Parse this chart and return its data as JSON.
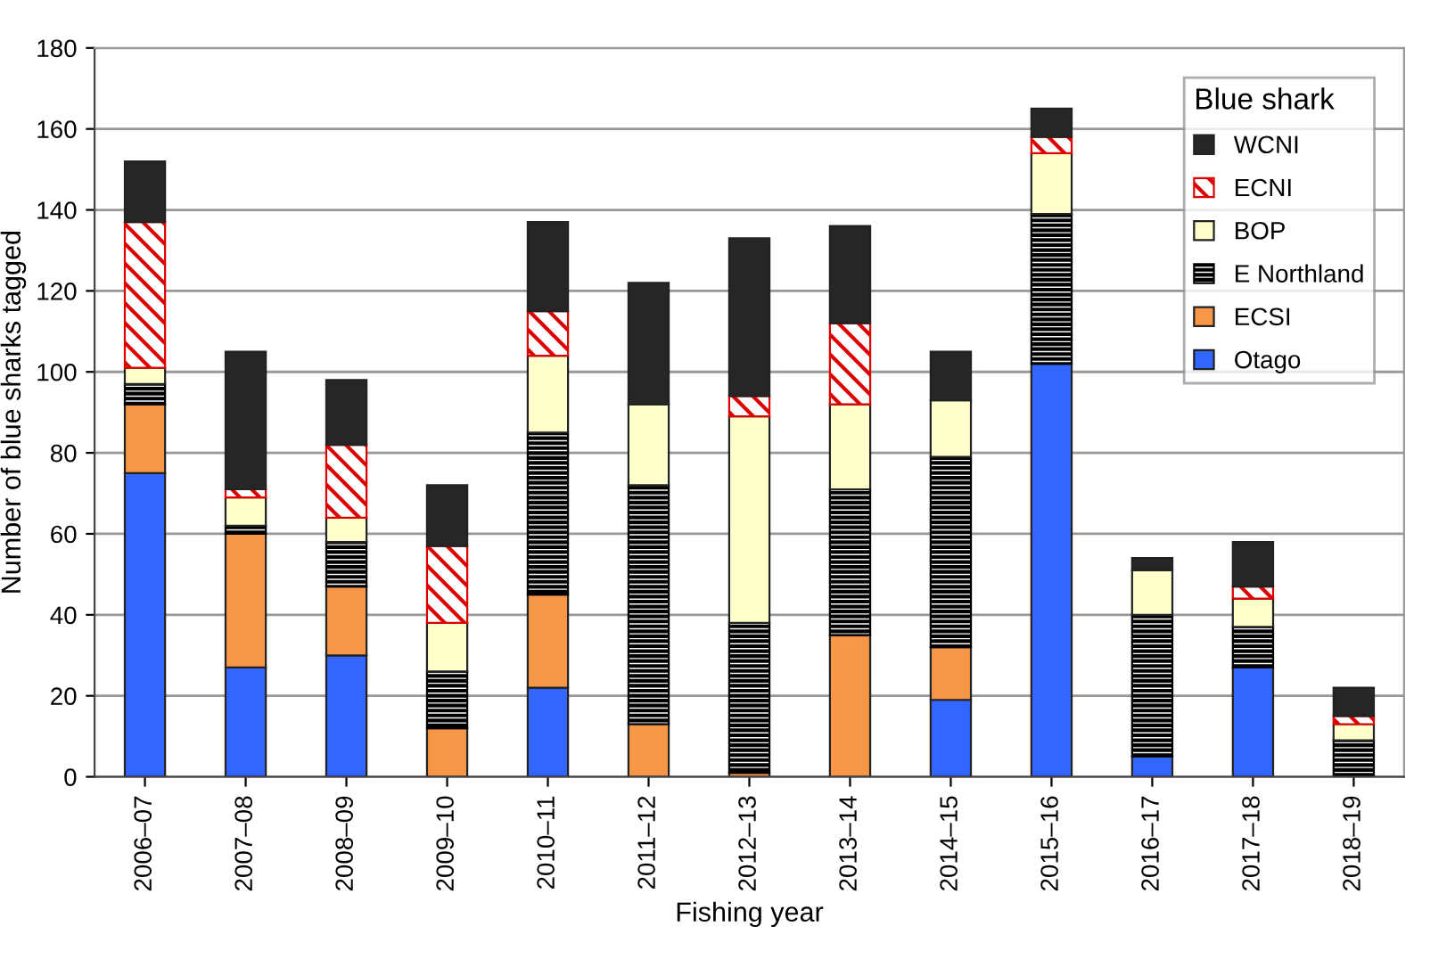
{
  "chart_data": {
    "type": "bar",
    "stacked": true,
    "xlabel": "Fishing year",
    "ylabel": "Number of blue sharks tagged",
    "legend_title": "Blue shark",
    "legend": "top right",
    "grid": "y",
    "categories": [
      "2006–07",
      "2007–08",
      "2008–09",
      "2009–10",
      "2010–11",
      "2011–12",
      "2012–13",
      "2013–14",
      "2014–15",
      "2015–16",
      "2016–17",
      "2017–18",
      "2018–19"
    ],
    "ylim": [
      0,
      180
    ],
    "yticks": [
      0,
      20,
      40,
      60,
      80,
      100,
      120,
      140,
      160,
      180
    ],
    "series": [
      {
        "name": "Otago",
        "color": "#3366ff",
        "values": [
          75,
          27,
          30,
          0,
          22,
          0,
          0,
          0,
          19,
          102,
          5,
          27,
          0
        ]
      },
      {
        "name": "ECSI",
        "color": "#f79646",
        "values": [
          17,
          33,
          17,
          12,
          23,
          13,
          1,
          35,
          13,
          0,
          0,
          0,
          0
        ]
      },
      {
        "name": "E Northland",
        "color": "#000000",
        "values": [
          5,
          2,
          11,
          14,
          40,
          59,
          37,
          36,
          47,
          37,
          35,
          10,
          9
        ]
      },
      {
        "name": "BOP",
        "color": "#ffffcc",
        "values": [
          4,
          7,
          6,
          12,
          19,
          20,
          51,
          21,
          14,
          15,
          11,
          7,
          4
        ]
      },
      {
        "name": "ECNI",
        "color": "#dd0000",
        "values": [
          36,
          2,
          18,
          19,
          11,
          0,
          5,
          20,
          0,
          4,
          0,
          3,
          2
        ]
      },
      {
        "name": "WCNI",
        "color": "#262626",
        "values": [
          15,
          34,
          16,
          15,
          22,
          30,
          39,
          24,
          12,
          7,
          3,
          11,
          7
        ]
      }
    ]
  }
}
